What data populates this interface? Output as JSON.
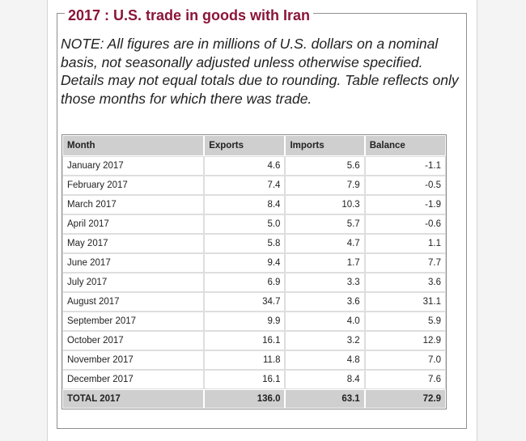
{
  "title": "2017 : U.S. trade in goods with Iran",
  "note": "NOTE: All figures are in millions of U.S. dollars on a nominal basis, not seasonally adjusted unless otherwise specified. Details may not equal totals due to rounding. Table reflects only those months for which there was trade.",
  "colors": {
    "title": "#8b1538",
    "header_bg": "#cfcfcf"
  },
  "table": {
    "headers": [
      "Month",
      "Exports",
      "Imports",
      "Balance"
    ],
    "rows": [
      [
        "January 2017",
        "4.6",
        "5.6",
        "-1.1"
      ],
      [
        "February 2017",
        "7.4",
        "7.9",
        "-0.5"
      ],
      [
        "March 2017",
        "8.4",
        "10.3",
        "-1.9"
      ],
      [
        "April 2017",
        "5.0",
        "5.7",
        "-0.6"
      ],
      [
        "May 2017",
        "5.8",
        "4.7",
        "1.1"
      ],
      [
        "June 2017",
        "9.4",
        "1.7",
        "7.7"
      ],
      [
        "July 2017",
        "6.9",
        "3.3",
        "3.6"
      ],
      [
        "August 2017",
        "34.7",
        "3.6",
        "31.1"
      ],
      [
        "September 2017",
        "9.9",
        "4.0",
        "5.9"
      ],
      [
        "October 2017",
        "16.1",
        "3.2",
        "12.9"
      ],
      [
        "November 2017",
        "11.8",
        "4.8",
        "7.0"
      ],
      [
        "December 2017",
        "16.1",
        "8.4",
        "7.6"
      ]
    ],
    "total": [
      "TOTAL 2017",
      "136.0",
      "63.1",
      "72.9"
    ]
  }
}
